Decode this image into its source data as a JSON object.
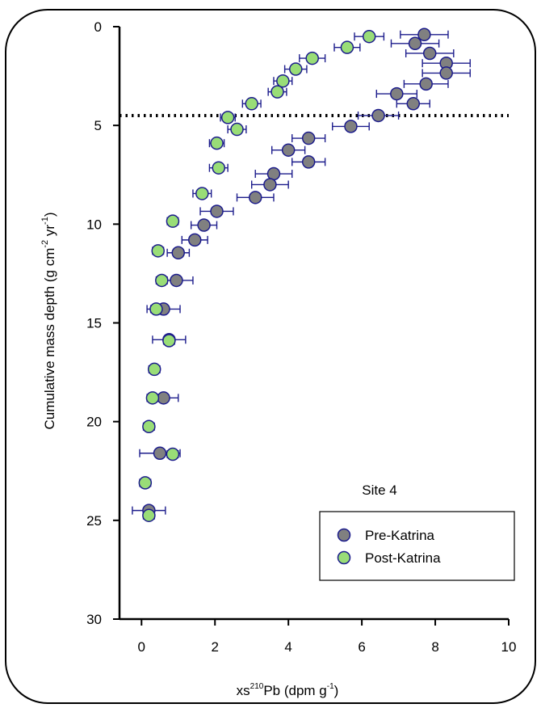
{
  "chart_data": {
    "type": "scatter",
    "annotation": "Site 4",
    "xlabel": {
      "prefix": "xs",
      "superscript": "210",
      "main": "Pb (dpm g",
      "unit_sup": "-1",
      "suffix": ")"
    },
    "ylabel": {
      "main": "Cumulative mass depth (g cm",
      "sup1": "-2",
      "mid": " yr",
      "sup2": "-1",
      "suffix": ")"
    },
    "xlim": [
      -0.6,
      10
    ],
    "ylim": [
      0,
      30
    ],
    "y_inverted": true,
    "xticks": [
      "0",
      "2",
      "4",
      "6",
      "8",
      "10"
    ],
    "yticks": [
      "0",
      "5",
      "10",
      "15",
      "20",
      "25",
      "30"
    ],
    "reference_line": {
      "y": 4.5,
      "style": "dotted"
    },
    "legend": {
      "position": "bottom-right"
    },
    "series": [
      {
        "name": "Pre-Katrina",
        "color": "#808080",
        "points": [
          {
            "x": 7.7,
            "y": 0.4,
            "err": 0.65
          },
          {
            "x": 7.45,
            "y": 0.85,
            "err": 0.65
          },
          {
            "x": 7.85,
            "y": 1.35,
            "err": 0.65
          },
          {
            "x": 8.3,
            "y": 1.85,
            "err": 0.65
          },
          {
            "x": 8.3,
            "y": 2.35,
            "err": 0.65
          },
          {
            "x": 7.75,
            "y": 2.9,
            "err": 0.6
          },
          {
            "x": 6.95,
            "y": 3.4,
            "err": 0.55
          },
          {
            "x": 7.4,
            "y": 3.9,
            "err": 0.45
          },
          {
            "x": 6.45,
            "y": 4.5,
            "err": 0.55
          },
          {
            "x": 5.7,
            "y": 5.05,
            "err": 0.5
          },
          {
            "x": 4.55,
            "y": 5.65,
            "err": 0.45
          },
          {
            "x": 4.0,
            "y": 6.25,
            "err": 0.45
          },
          {
            "x": 4.55,
            "y": 6.85,
            "err": 0.45
          },
          {
            "x": 3.6,
            "y": 7.45,
            "err": 0.5
          },
          {
            "x": 3.5,
            "y": 8.0,
            "err": 0.5
          },
          {
            "x": 3.1,
            "y": 8.65,
            "err": 0.5
          },
          {
            "x": 2.05,
            "y": 9.35,
            "err": 0.45
          },
          {
            "x": 1.7,
            "y": 10.05,
            "err": 0.35
          },
          {
            "x": 1.45,
            "y": 10.8,
            "err": 0.35
          },
          {
            "x": 1.0,
            "y": 11.45,
            "err": 0.3
          },
          {
            "x": 0.95,
            "y": 12.85,
            "err": 0.45
          },
          {
            "x": 0.6,
            "y": 14.3,
            "err": 0.45
          },
          {
            "x": 0.75,
            "y": 15.85,
            "err": 0.45
          },
          {
            "x": 0.6,
            "y": 18.8,
            "err": 0.4
          },
          {
            "x": 0.5,
            "y": 21.6,
            "err": 0.55
          },
          {
            "x": 0.2,
            "y": 24.5,
            "err": 0.45
          }
        ]
      },
      {
        "name": "Post-Katrina",
        "color": "#99dd77",
        "points": [
          {
            "x": 6.2,
            "y": 0.5,
            "err": 0.4
          },
          {
            "x": 5.6,
            "y": 1.05,
            "err": 0.35
          },
          {
            "x": 4.65,
            "y": 1.6,
            "err": 0.35
          },
          {
            "x": 4.2,
            "y": 2.15,
            "err": 0.3
          },
          {
            "x": 3.85,
            "y": 2.75,
            "err": 0.25
          },
          {
            "x": 3.7,
            "y": 3.3,
            "err": 0.25
          },
          {
            "x": 3.0,
            "y": 3.9,
            "err": 0.25
          },
          {
            "x": 2.35,
            "y": 4.6,
            "err": 0.2
          },
          {
            "x": 2.6,
            "y": 5.2,
            "err": 0.25
          },
          {
            "x": 2.05,
            "y": 5.9,
            "err": 0.2
          },
          {
            "x": 2.1,
            "y": 7.15,
            "err": 0.25
          },
          {
            "x": 1.65,
            "y": 8.45,
            "err": 0.25
          },
          {
            "x": 0.85,
            "y": 9.85,
            "err": 0.15
          },
          {
            "x": 0.45,
            "y": 11.35,
            "err": 0.15
          },
          {
            "x": 0.55,
            "y": 12.85,
            "err": 0.15
          },
          {
            "x": 0.4,
            "y": 14.3,
            "err": 0.15
          },
          {
            "x": 0.75,
            "y": 15.9,
            "err": 0.15
          },
          {
            "x": 0.35,
            "y": 17.35,
            "err": 0.15
          },
          {
            "x": 0.3,
            "y": 18.8,
            "err": 0.15
          },
          {
            "x": 0.2,
            "y": 20.25,
            "err": 0.15
          },
          {
            "x": 0.85,
            "y": 21.65,
            "err": 0.15
          },
          {
            "x": 0.1,
            "y": 23.1,
            "err": 0.15
          },
          {
            "x": 0.2,
            "y": 24.75,
            "err": 0.15
          }
        ]
      }
    ]
  }
}
